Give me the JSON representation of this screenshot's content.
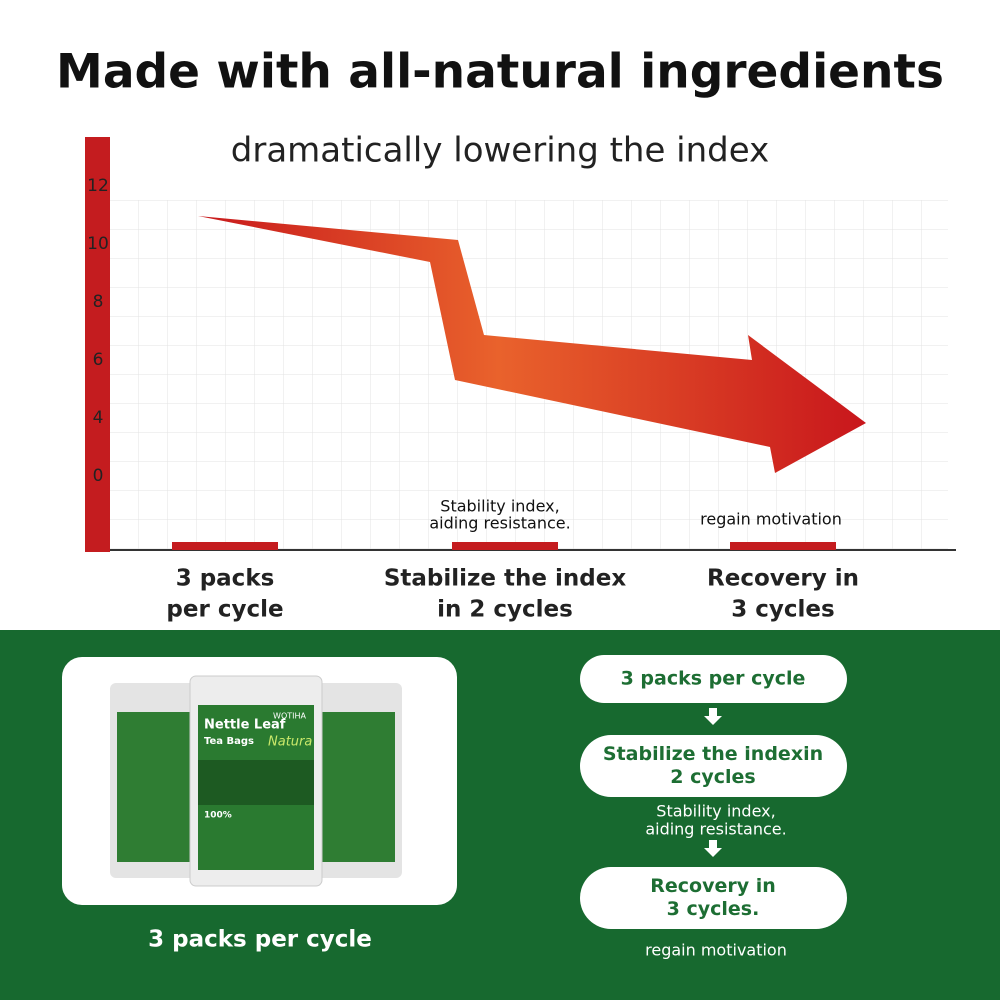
{
  "header": {
    "title": "Made with all-natural ingredients",
    "subtitle": "dramatically lowering the index"
  },
  "axis": {
    "ticks": [
      12,
      10,
      8,
      6,
      4,
      0
    ]
  },
  "steps": [
    {
      "lines": [
        "3 packs",
        "per cycle"
      ]
    },
    {
      "note": [
        "Stability index,",
        "aiding resistance."
      ],
      "lines": [
        "Stabilize the index",
        "in 2 cycles"
      ]
    },
    {
      "note": [
        "regain motivation"
      ],
      "lines": [
        "Recovery in",
        "3 cycles"
      ]
    }
  ],
  "product": {
    "brand": "WOTIHA",
    "name": "Nettle Leaf",
    "sub": "Tea Bags",
    "script": "Natura",
    "badge": "100%",
    "caption": "3 packs per cycle"
  },
  "flow": [
    {
      "lines": [
        "3 packs per cycle"
      ]
    },
    {
      "lines": [
        "Stabilize the indexin",
        "2 cycles"
      ],
      "note": [
        "Stability index,",
        "aiding resistance."
      ]
    },
    {
      "lines": [
        "Recovery in",
        "3 cycles."
      ],
      "note": [
        "regain motivation"
      ]
    }
  ]
}
